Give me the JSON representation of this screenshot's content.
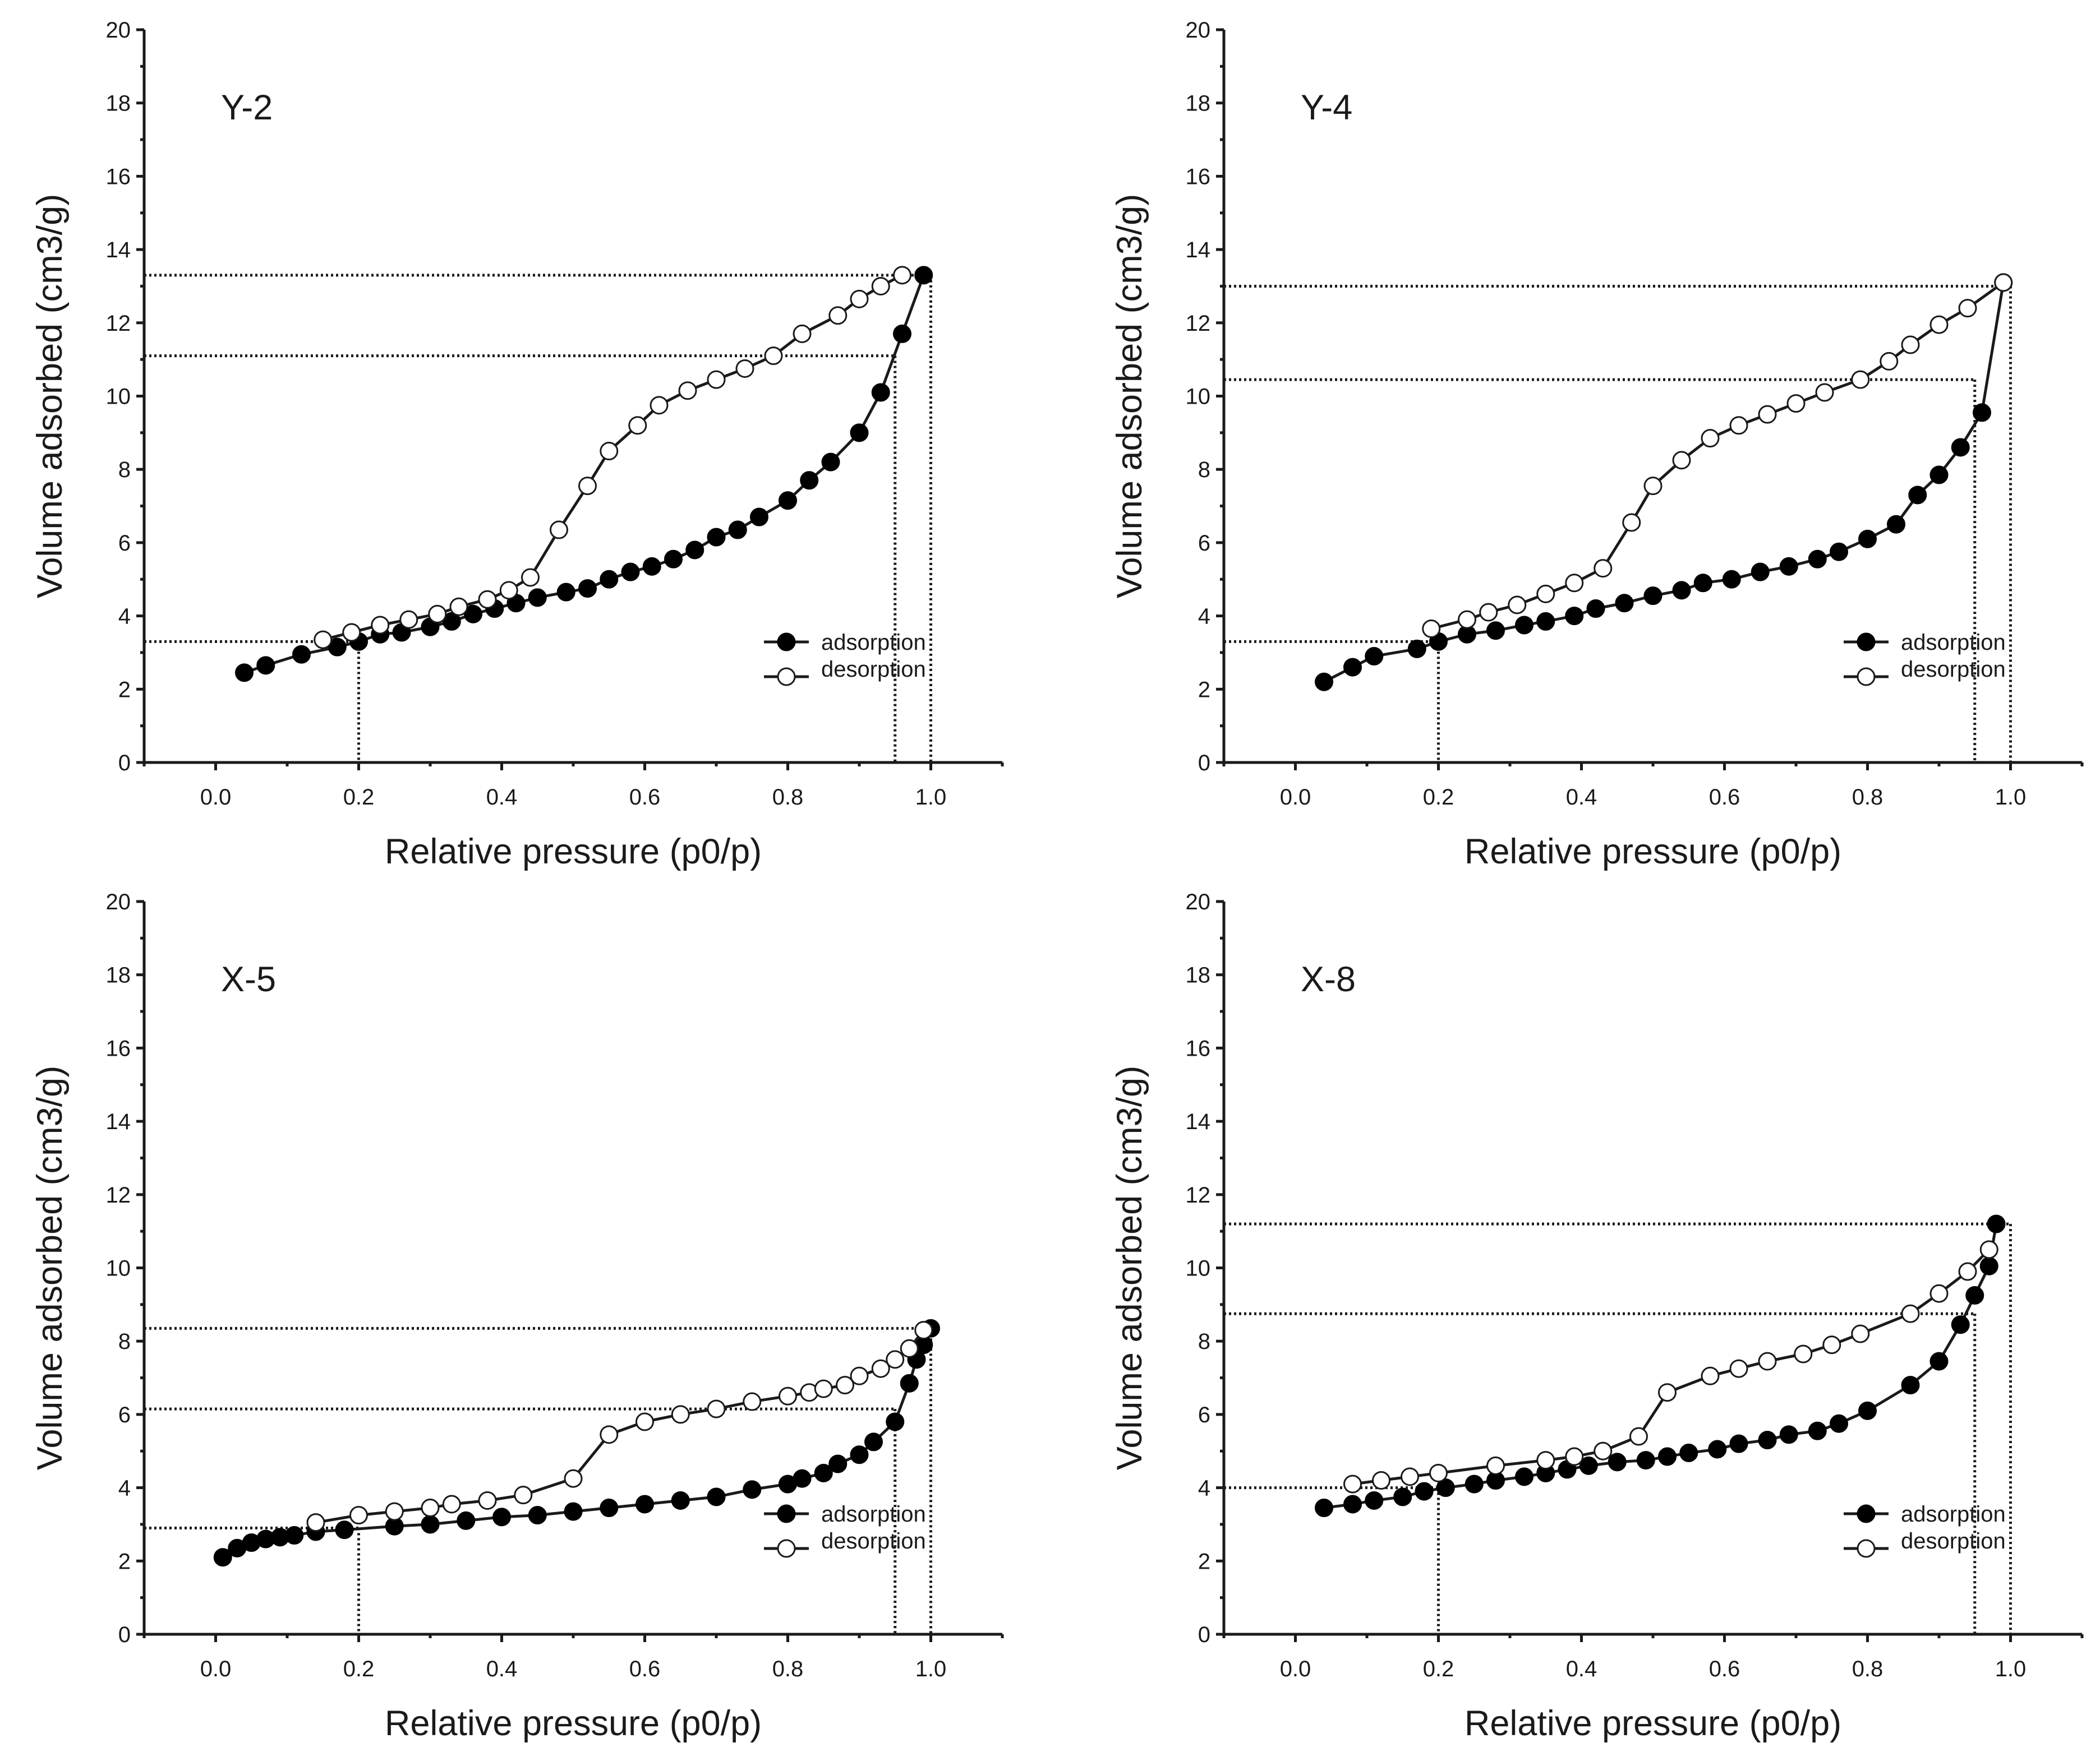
{
  "figure": {
    "legend": {
      "adsorption": "adsorption",
      "desorption": "desorption"
    }
  },
  "chart_data": [
    {
      "type": "line",
      "panel": "Y-2",
      "xlabel": "Relative pressure (p0/p)",
      "ylabel": "Volume adsorbed (cm3/g)",
      "xlim": [
        -0.1,
        1.1
      ],
      "ylim": [
        0,
        20
      ],
      "xticks": [
        "0.0",
        "0.2",
        "0.4",
        "0.6",
        "0.8",
        "1.0"
      ],
      "yticks": [
        "0",
        "2",
        "4",
        "6",
        "8",
        "10",
        "12",
        "14",
        "16",
        "18",
        "20"
      ],
      "grid": false,
      "legend_position": "bottom-right",
      "series": [
        {
          "name": "adsorption",
          "marker": "filled circle",
          "x": [
            0.04,
            0.07,
            0.12,
            0.17,
            0.2,
            0.23,
            0.26,
            0.3,
            0.33,
            0.36,
            0.39,
            0.42,
            0.45,
            0.49,
            0.52,
            0.55,
            0.58,
            0.61,
            0.64,
            0.67,
            0.7,
            0.73,
            0.76,
            0.8,
            0.83,
            0.86,
            0.9,
            0.93,
            0.96,
            0.99
          ],
          "y": [
            2.45,
            2.65,
            2.95,
            3.15,
            3.3,
            3.5,
            3.55,
            3.7,
            3.85,
            4.05,
            4.2,
            4.35,
            4.5,
            4.65,
            4.75,
            5.0,
            5.2,
            5.35,
            5.55,
            5.8,
            6.15,
            6.35,
            6.7,
            7.15,
            7.7,
            8.2,
            9.0,
            10.1,
            11.7,
            13.3
          ]
        },
        {
          "name": "desorption",
          "marker": "open circle",
          "x": [
            0.15,
            0.19,
            0.23,
            0.27,
            0.31,
            0.34,
            0.38,
            0.41,
            0.44,
            0.48,
            0.52,
            0.55,
            0.59,
            0.62,
            0.66,
            0.7,
            0.74,
            0.78,
            0.82,
            0.87,
            0.9,
            0.93,
            0.96
          ],
          "y": [
            3.35,
            3.55,
            3.75,
            3.9,
            4.05,
            4.25,
            4.45,
            4.7,
            5.05,
            6.35,
            7.55,
            8.5,
            9.2,
            9.75,
            10.15,
            10.45,
            10.75,
            11.1,
            11.7,
            12.2,
            12.65,
            13.0,
            13.3
          ]
        }
      ],
      "guides": {
        "h": [
          13.3,
          11.1,
          3.3
        ],
        "v": [
          0.2,
          0.95,
          1.0
        ]
      }
    },
    {
      "type": "line",
      "panel": "Y-4",
      "xlabel": "Relative pressure (p0/p)",
      "ylabel": "Volume adsorbed (cm3/g)",
      "xlim": [
        -0.1,
        1.1
      ],
      "ylim": [
        0,
        20
      ],
      "xticks": [
        "0.0",
        "0.2",
        "0.4",
        "0.6",
        "0.8",
        "1.0"
      ],
      "yticks": [
        "0",
        "2",
        "4",
        "6",
        "8",
        "10",
        "12",
        "14",
        "16",
        "18",
        "20"
      ],
      "grid": false,
      "legend_position": "bottom-right",
      "series": [
        {
          "name": "adsorption",
          "marker": "filled circle",
          "x": [
            0.04,
            0.08,
            0.11,
            0.17,
            0.2,
            0.24,
            0.28,
            0.32,
            0.35,
            0.39,
            0.42,
            0.46,
            0.5,
            0.54,
            0.57,
            0.61,
            0.65,
            0.69,
            0.73,
            0.76,
            0.8,
            0.84,
            0.87,
            0.9,
            0.93,
            0.96,
            0.99
          ],
          "y": [
            2.2,
            2.6,
            2.9,
            3.1,
            3.3,
            3.5,
            3.6,
            3.75,
            3.85,
            4.0,
            4.2,
            4.35,
            4.55,
            4.7,
            4.9,
            5.0,
            5.2,
            5.35,
            5.55,
            5.75,
            6.1,
            6.5,
            7.3,
            7.85,
            8.6,
            9.55,
            13.1
          ]
        },
        {
          "name": "desorption",
          "marker": "open circle",
          "x": [
            0.19,
            0.24,
            0.27,
            0.31,
            0.35,
            0.39,
            0.43,
            0.47,
            0.5,
            0.54,
            0.58,
            0.62,
            0.66,
            0.7,
            0.74,
            0.79,
            0.83,
            0.86,
            0.9,
            0.94,
            0.99
          ],
          "y": [
            3.65,
            3.9,
            4.1,
            4.3,
            4.6,
            4.9,
            5.3,
            6.55,
            7.55,
            8.25,
            8.85,
            9.2,
            9.5,
            9.8,
            10.1,
            10.45,
            10.95,
            11.4,
            11.95,
            12.4,
            13.1
          ]
        }
      ],
      "guides": {
        "h": [
          13.0,
          10.45,
          3.3
        ],
        "v": [
          0.2,
          0.95,
          1.0
        ]
      }
    },
    {
      "type": "line",
      "panel": "X-5",
      "xlabel": "Relative pressure (p0/p)",
      "ylabel": "Volume adsorbed (cm3/g)",
      "xlim": [
        -0.1,
        1.1
      ],
      "ylim": [
        0,
        20
      ],
      "xticks": [
        "0.0",
        "0.2",
        "0.4",
        "0.6",
        "0.8",
        "1.0"
      ],
      "yticks": [
        "0",
        "2",
        "4",
        "6",
        "8",
        "10",
        "12",
        "14",
        "16",
        "18",
        "20"
      ],
      "grid": false,
      "legend_position": "bottom-right",
      "series": [
        {
          "name": "adsorption",
          "marker": "filled circle",
          "x": [
            0.01,
            0.03,
            0.05,
            0.07,
            0.09,
            0.11,
            0.14,
            0.18,
            0.25,
            0.3,
            0.35,
            0.4,
            0.45,
            0.5,
            0.55,
            0.6,
            0.65,
            0.7,
            0.75,
            0.8,
            0.82,
            0.85,
            0.87,
            0.9,
            0.92,
            0.95,
            0.97,
            0.98,
            0.99,
            1.0
          ],
          "y": [
            2.1,
            2.35,
            2.5,
            2.6,
            2.65,
            2.7,
            2.8,
            2.85,
            2.95,
            3.0,
            3.1,
            3.2,
            3.25,
            3.35,
            3.45,
            3.55,
            3.65,
            3.75,
            3.95,
            4.1,
            4.25,
            4.4,
            4.65,
            4.9,
            5.25,
            5.8,
            6.85,
            7.5,
            7.9,
            8.35
          ]
        },
        {
          "name": "desorption",
          "marker": "open circle",
          "x": [
            0.14,
            0.2,
            0.25,
            0.3,
            0.33,
            0.38,
            0.43,
            0.5,
            0.55,
            0.6,
            0.65,
            0.7,
            0.75,
            0.8,
            0.83,
            0.85,
            0.88,
            0.9,
            0.93,
            0.95,
            0.97,
            0.99
          ],
          "y": [
            3.05,
            3.25,
            3.35,
            3.45,
            3.55,
            3.65,
            3.8,
            4.25,
            5.45,
            5.8,
            6.0,
            6.15,
            6.35,
            6.5,
            6.6,
            6.7,
            6.8,
            7.05,
            7.25,
            7.5,
            7.8,
            8.3
          ]
        }
      ],
      "guides": {
        "h": [
          8.35,
          6.15,
          2.9
        ],
        "v": [
          0.2,
          0.95,
          1.0
        ]
      }
    },
    {
      "type": "line",
      "panel": "X-8",
      "xlabel": "Relative pressure (p0/p)",
      "ylabel": "Volume adsorbed (cm3/g)",
      "xlim": [
        -0.1,
        1.1
      ],
      "ylim": [
        0,
        20
      ],
      "xticks": [
        "0.0",
        "0.2",
        "0.4",
        "0.6",
        "0.8",
        "1.0"
      ],
      "yticks": [
        "0",
        "2",
        "4",
        "6",
        "8",
        "10",
        "12",
        "14",
        "16",
        "18",
        "20"
      ],
      "grid": false,
      "legend_position": "bottom-right",
      "series": [
        {
          "name": "adsorption",
          "marker": "filled circle",
          "x": [
            0.04,
            0.08,
            0.11,
            0.15,
            0.18,
            0.21,
            0.25,
            0.28,
            0.32,
            0.35,
            0.38,
            0.41,
            0.45,
            0.49,
            0.52,
            0.55,
            0.59,
            0.62,
            0.66,
            0.69,
            0.73,
            0.76,
            0.8,
            0.86,
            0.9,
            0.93,
            0.95,
            0.97,
            0.98
          ],
          "y": [
            3.45,
            3.55,
            3.65,
            3.75,
            3.9,
            4.0,
            4.1,
            4.2,
            4.3,
            4.4,
            4.5,
            4.6,
            4.7,
            4.75,
            4.85,
            4.95,
            5.05,
            5.2,
            5.3,
            5.45,
            5.55,
            5.75,
            6.1,
            6.8,
            7.45,
            8.45,
            9.25,
            10.05,
            11.2
          ]
        },
        {
          "name": "desorption",
          "marker": "open circle",
          "x": [
            0.08,
            0.12,
            0.16,
            0.2,
            0.28,
            0.35,
            0.39,
            0.43,
            0.48,
            0.52,
            0.58,
            0.62,
            0.66,
            0.71,
            0.75,
            0.79,
            0.86,
            0.9,
            0.94,
            0.97
          ],
          "y": [
            4.1,
            4.2,
            4.3,
            4.4,
            4.6,
            4.75,
            4.85,
            5.0,
            5.4,
            6.6,
            7.05,
            7.25,
            7.45,
            7.65,
            7.9,
            8.2,
            8.75,
            9.3,
            9.9,
            10.5
          ]
        }
      ],
      "guides": {
        "h": [
          11.2,
          8.75,
          4.0
        ],
        "v": [
          0.2,
          0.95,
          1.0
        ]
      }
    }
  ]
}
